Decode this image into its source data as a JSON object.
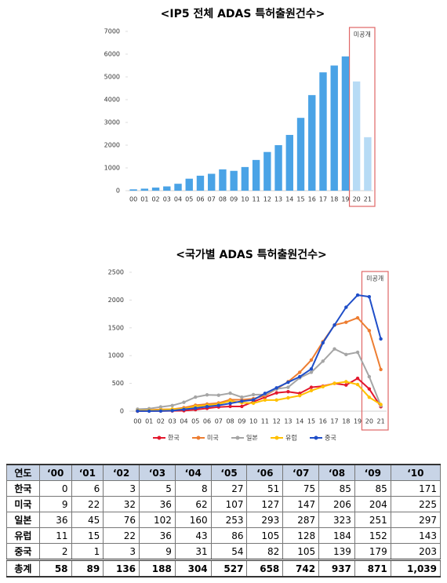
{
  "chart_data": [
    {
      "type": "bar",
      "title": "<IP5 전체  ADAS 특허출원건수>",
      "annotation": "미공개",
      "categories": [
        "00",
        "01",
        "02",
        "03",
        "04",
        "05",
        "06",
        "07",
        "08",
        "09",
        "10",
        "11",
        "12",
        "13",
        "14",
        "15",
        "16",
        "17",
        "18",
        "19",
        "20",
        "21"
      ],
      "values": [
        58,
        89,
        136,
        188,
        304,
        527,
        658,
        742,
        937,
        871,
        1039,
        1350,
        1700,
        2000,
        2450,
        3200,
        4200,
        5200,
        5500,
        5900,
        4800,
        2350
      ],
      "colors": [
        "#4aa3e6",
        "#4aa3e6",
        "#4aa3e6",
        "#4aa3e6",
        "#4aa3e6",
        "#4aa3e6",
        "#4aa3e6",
        "#4aa3e6",
        "#4aa3e6",
        "#4aa3e6",
        "#4aa3e6",
        "#4aa3e6",
        "#4aa3e6",
        "#4aa3e6",
        "#4aa3e6",
        "#4aa3e6",
        "#4aa3e6",
        "#4aa3e6",
        "#4aa3e6",
        "#4aa3e6",
        "#b7dbf5",
        "#b7dbf5"
      ],
      "ylim": [
        0,
        7000
      ],
      "yticks": [
        0,
        1000,
        2000,
        3000,
        4000,
        5000,
        6000,
        7000
      ]
    },
    {
      "type": "line",
      "title": "<국가별  ADAS 특허출원건수>",
      "annotation": "미공개",
      "categories": [
        "00",
        "01",
        "02",
        "03",
        "04",
        "05",
        "06",
        "07",
        "08",
        "09",
        "10",
        "11",
        "12",
        "13",
        "14",
        "15",
        "16",
        "17",
        "18",
        "19",
        "20",
        "21"
      ],
      "series": [
        {
          "name": "한국",
          "color": "#e3182d",
          "values": [
            0,
            6,
            3,
            5,
            8,
            27,
            51,
            75,
            85,
            85,
            171,
            250,
            330,
            350,
            320,
            430,
            450,
            500,
            470,
            590,
            400,
            80
          ]
        },
        {
          "name": "미국",
          "color": "#ed7d31",
          "values": [
            9,
            22,
            32,
            36,
            62,
            107,
            127,
            147,
            206,
            204,
            225,
            280,
            400,
            530,
            700,
            920,
            1250,
            1550,
            1600,
            1680,
            1450,
            750
          ]
        },
        {
          "name": "일본",
          "color": "#a5a5a5",
          "values": [
            36,
            45,
            76,
            102,
            160,
            253,
            293,
            287,
            323,
            251,
            297,
            300,
            400,
            430,
            600,
            700,
            900,
            1120,
            1020,
            1060,
            620,
            100
          ]
        },
        {
          "name": "유럽",
          "color": "#ffc000",
          "values": [
            11,
            15,
            22,
            36,
            43,
            86,
            105,
            128,
            184,
            152,
            143,
            200,
            200,
            240,
            280,
            370,
            440,
            500,
            530,
            480,
            250,
            120
          ]
        },
        {
          "name": "중국",
          "color": "#1f4ec8",
          "values": [
            2,
            1,
            3,
            9,
            31,
            54,
            82,
            105,
            139,
            179,
            203,
            320,
            420,
            520,
            620,
            760,
            1230,
            1550,
            1870,
            2090,
            2060,
            1300
          ]
        }
      ],
      "ylim": [
        0,
        2500
      ],
      "yticks": [
        0,
        500,
        1000,
        1500,
        2000,
        2500
      ],
      "legend": "bottom"
    }
  ],
  "table": {
    "header": [
      "연도",
      "‘00",
      "‘01",
      "‘02",
      "‘03",
      "‘04",
      "‘05",
      "‘06",
      "‘07",
      "‘08",
      "‘09",
      "‘10"
    ],
    "rows": [
      [
        "한국",
        "0",
        "6",
        "3",
        "5",
        "8",
        "27",
        "51",
        "75",
        "85",
        "85",
        "171"
      ],
      [
        "미국",
        "9",
        "22",
        "32",
        "36",
        "62",
        "107",
        "127",
        "147",
        "206",
        "204",
        "225"
      ],
      [
        "일본",
        "36",
        "45",
        "76",
        "102",
        "160",
        "253",
        "293",
        "287",
        "323",
        "251",
        "297"
      ],
      [
        "유럽",
        "11",
        "15",
        "22",
        "36",
        "43",
        "86",
        "105",
        "128",
        "184",
        "152",
        "143"
      ],
      [
        "중국",
        "2",
        "1",
        "3",
        "9",
        "31",
        "54",
        "82",
        "105",
        "139",
        "179",
        "203"
      ]
    ],
    "total": [
      "총계",
      "58",
      "89",
      "136",
      "188",
      "304",
      "527",
      "658",
      "742",
      "937",
      "871",
      "1,039"
    ]
  }
}
